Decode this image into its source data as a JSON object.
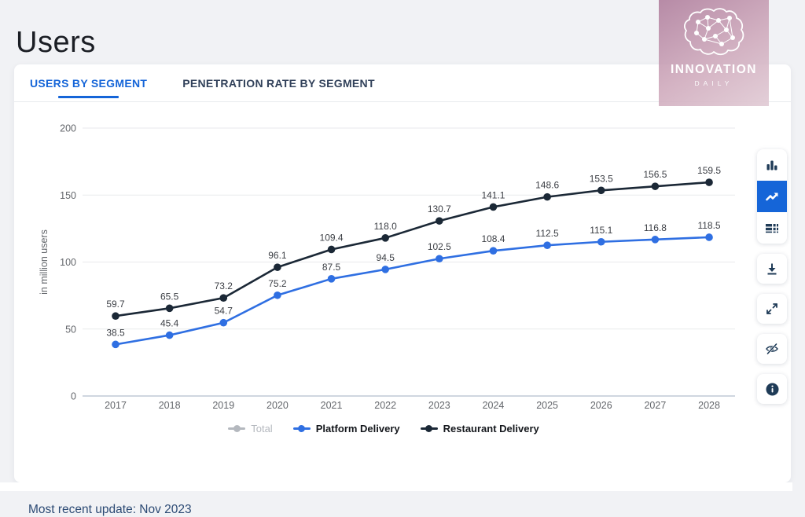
{
  "header": {
    "title": "Users"
  },
  "brand": {
    "name": "INNOVATION",
    "sub": "DAILY"
  },
  "tabs": {
    "users": "USERS BY SEGMENT",
    "penetration": "PENETRATION RATE BY SEGMENT"
  },
  "toolbar": {
    "buttons": [
      "bar-chart",
      "line-chart",
      "table",
      "download",
      "fullscreen",
      "hide",
      "info"
    ],
    "active": "line-chart"
  },
  "footer": {
    "updated": "Most recent update: Nov 2023"
  },
  "chart_data": {
    "type": "line",
    "title": "Users",
    "ylabel": "in million users",
    "xlabel": "",
    "x": [
      2017,
      2018,
      2019,
      2020,
      2021,
      2022,
      2023,
      2024,
      2025,
      2026,
      2027,
      2028
    ],
    "yticks": [
      0,
      50,
      100,
      150,
      200
    ],
    "ylim": [
      0,
      200
    ],
    "grid": true,
    "legend_position": "bottom",
    "colors": {
      "accent_blue": "#1565d8",
      "grid": "#e9eaec",
      "zero_axis": "#cfd6e0",
      "tick_text": "#63666b",
      "value_label_text": "#3b3e44"
    },
    "series": [
      {
        "name": "Total",
        "color": "#b4b8be",
        "disabled": true,
        "values": null
      },
      {
        "name": "Platform Delivery",
        "color": "#2f6fe2",
        "disabled": false,
        "values": [
          38.5,
          45.4,
          54.7,
          75.2,
          87.5,
          94.5,
          102.5,
          108.4,
          112.5,
          115.1,
          116.8,
          118.5
        ]
      },
      {
        "name": "Restaurant Delivery",
        "color": "#1b2836",
        "disabled": false,
        "values": [
          59.7,
          65.5,
          73.2,
          96.1,
          109.4,
          118.0,
          130.7,
          141.1,
          148.6,
          153.5,
          156.5,
          159.5
        ]
      }
    ]
  }
}
